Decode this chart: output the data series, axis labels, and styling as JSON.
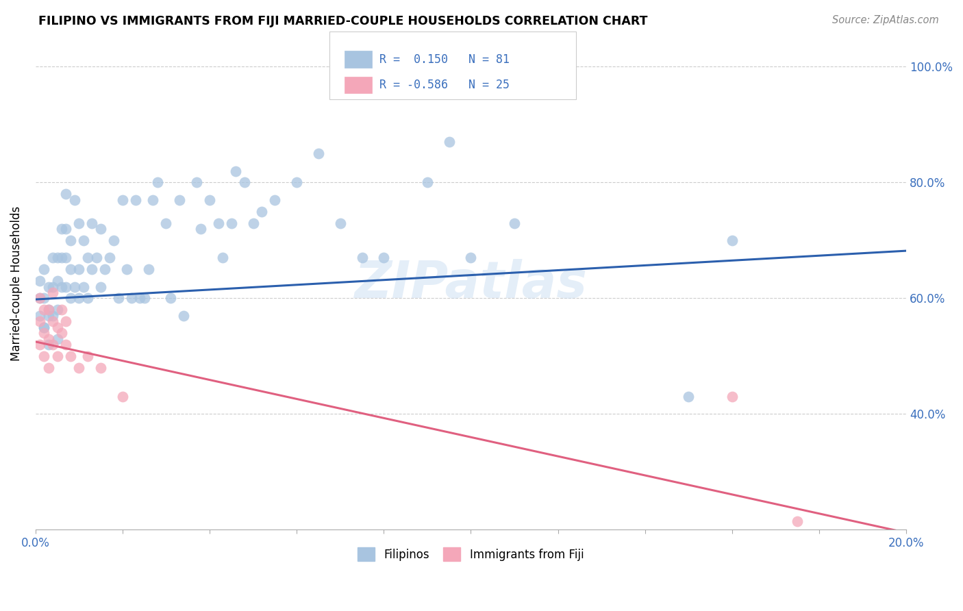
{
  "title": "FILIPINO VS IMMIGRANTS FROM FIJI MARRIED-COUPLE HOUSEHOLDS CORRELATION CHART",
  "source": "Source: ZipAtlas.com",
  "ylabel_label": "Married-couple Households",
  "x_min": 0.0,
  "x_max": 0.2,
  "y_min": 0.2,
  "y_max": 1.05,
  "x_tick_positions": [
    0.0,
    0.02,
    0.04,
    0.06,
    0.08,
    0.1,
    0.12,
    0.14,
    0.16,
    0.18,
    0.2
  ],
  "x_tick_labels": [
    "0.0%",
    "",
    "",
    "",
    "",
    "",
    "",
    "",
    "",
    "",
    "20.0%"
  ],
  "y_tick_positions": [
    0.4,
    0.6,
    0.8,
    1.0
  ],
  "y_tick_labels": [
    "40.0%",
    "60.0%",
    "80.0%",
    "100.0%"
  ],
  "filipino_color": "#a8c4e0",
  "fiji_color": "#f4a7b9",
  "filipino_line_color": "#2b5fad",
  "fiji_line_color": "#e06080",
  "watermark": "ZIPatlas",
  "legend_r_filipino": "0.150",
  "legend_n_filipino": "81",
  "legend_r_fiji": "-0.586",
  "legend_n_fiji": "25",
  "fil_line_x0": 0.0,
  "fil_line_y0": 0.598,
  "fil_line_x1": 0.2,
  "fil_line_y1": 0.682,
  "fij_line_x0": 0.0,
  "fij_line_y0": 0.525,
  "fij_line_x1": 0.2,
  "fij_line_y1": 0.195,
  "filipino_x": [
    0.001,
    0.001,
    0.001,
    0.002,
    0.002,
    0.002,
    0.002,
    0.003,
    0.003,
    0.003,
    0.003,
    0.004,
    0.004,
    0.004,
    0.005,
    0.005,
    0.005,
    0.005,
    0.006,
    0.006,
    0.006,
    0.007,
    0.007,
    0.007,
    0.007,
    0.008,
    0.008,
    0.008,
    0.009,
    0.009,
    0.01,
    0.01,
    0.01,
    0.011,
    0.011,
    0.012,
    0.012,
    0.013,
    0.013,
    0.014,
    0.015,
    0.015,
    0.016,
    0.017,
    0.018,
    0.019,
    0.02,
    0.021,
    0.022,
    0.023,
    0.024,
    0.025,
    0.026,
    0.027,
    0.028,
    0.03,
    0.031,
    0.033,
    0.034,
    0.037,
    0.038,
    0.04,
    0.042,
    0.043,
    0.046,
    0.048,
    0.05,
    0.055,
    0.06,
    0.065,
    0.07,
    0.075,
    0.08,
    0.09,
    0.095,
    0.1,
    0.11,
    0.15,
    0.16,
    0.045,
    0.052
  ],
  "filipino_y": [
    0.6,
    0.63,
    0.57,
    0.55,
    0.6,
    0.65,
    0.55,
    0.58,
    0.62,
    0.57,
    0.52,
    0.62,
    0.67,
    0.57,
    0.63,
    0.67,
    0.58,
    0.53,
    0.62,
    0.67,
    0.72,
    0.62,
    0.67,
    0.72,
    0.78,
    0.65,
    0.7,
    0.6,
    0.62,
    0.77,
    0.6,
    0.65,
    0.73,
    0.62,
    0.7,
    0.6,
    0.67,
    0.65,
    0.73,
    0.67,
    0.62,
    0.72,
    0.65,
    0.67,
    0.7,
    0.6,
    0.77,
    0.65,
    0.6,
    0.77,
    0.6,
    0.6,
    0.65,
    0.77,
    0.8,
    0.73,
    0.6,
    0.77,
    0.57,
    0.8,
    0.72,
    0.77,
    0.73,
    0.67,
    0.82,
    0.8,
    0.73,
    0.77,
    0.8,
    0.85,
    0.73,
    0.67,
    0.67,
    0.8,
    0.87,
    0.67,
    0.73,
    0.43,
    0.7,
    0.73,
    0.75
  ],
  "fiji_x": [
    0.001,
    0.001,
    0.001,
    0.002,
    0.002,
    0.002,
    0.003,
    0.003,
    0.003,
    0.004,
    0.004,
    0.004,
    0.005,
    0.005,
    0.006,
    0.006,
    0.007,
    0.007,
    0.008,
    0.01,
    0.012,
    0.015,
    0.02,
    0.16,
    0.175
  ],
  "fiji_y": [
    0.52,
    0.56,
    0.6,
    0.5,
    0.54,
    0.58,
    0.48,
    0.53,
    0.58,
    0.52,
    0.56,
    0.61,
    0.5,
    0.55,
    0.54,
    0.58,
    0.52,
    0.56,
    0.5,
    0.48,
    0.5,
    0.48,
    0.43,
    0.43,
    0.215
  ]
}
